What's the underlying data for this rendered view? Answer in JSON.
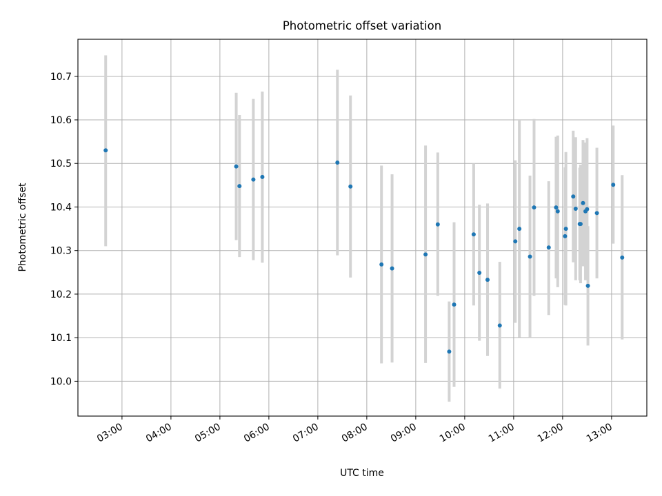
{
  "chart_data": {
    "type": "scatter",
    "title": "Photometric offset variation",
    "xlabel": "UTC time",
    "ylabel": "Photometric offset",
    "x_tick_labels": [
      "03:00",
      "04:00",
      "05:00",
      "06:00",
      "07:00",
      "08:00",
      "09:00",
      "10:00",
      "11:00",
      "12:00",
      "13:00"
    ],
    "y_tick_labels": [
      "10.0",
      "10.1",
      "10.2",
      "10.3",
      "10.4",
      "10.5",
      "10.6",
      "10.7"
    ],
    "xlim_hours": [
      2.1,
      13.72
    ],
    "ylim": [
      9.92,
      10.785
    ],
    "grid": true,
    "colors": {
      "point": "#1f77b4",
      "errorbar": "#d3d3d3"
    },
    "points": [
      {
        "x": "02:40",
        "y": 10.53,
        "ylo": 10.31,
        "yhi": 10.748
      },
      {
        "x": "05:20",
        "y": 10.493,
        "ylo": 10.324,
        "yhi": 10.662
      },
      {
        "x": "05:24",
        "y": 10.448,
        "ylo": 10.285,
        "yhi": 10.611
      },
      {
        "x": "05:41",
        "y": 10.463,
        "ylo": 10.278,
        "yhi": 10.648
      },
      {
        "x": "05:52",
        "y": 10.469,
        "ylo": 10.272,
        "yhi": 10.665
      },
      {
        "x": "07:24",
        "y": 10.502,
        "ylo": 10.289,
        "yhi": 10.715
      },
      {
        "x": "07:40",
        "y": 10.447,
        "ylo": 10.238,
        "yhi": 10.656
      },
      {
        "x": "08:18",
        "y": 10.268,
        "ylo": 10.041,
        "yhi": 10.495
      },
      {
        "x": "08:31",
        "y": 10.259,
        "ylo": 10.043,
        "yhi": 10.475
      },
      {
        "x": "09:12",
        "y": 10.291,
        "ylo": 10.042,
        "yhi": 10.541
      },
      {
        "x": "09:27",
        "y": 10.36,
        "ylo": 10.196,
        "yhi": 10.525
      },
      {
        "x": "09:41",
        "y": 10.068,
        "ylo": 9.953,
        "yhi": 10.183
      },
      {
        "x": "09:47",
        "y": 10.176,
        "ylo": 9.987,
        "yhi": 10.365
      },
      {
        "x": "10:11",
        "y": 10.337,
        "ylo": 10.174,
        "yhi": 10.5
      },
      {
        "x": "10:18",
        "y": 10.249,
        "ylo": 10.093,
        "yhi": 10.405
      },
      {
        "x": "10:28",
        "y": 10.233,
        "ylo": 10.058,
        "yhi": 10.408
      },
      {
        "x": "10:43",
        "y": 10.128,
        "ylo": 9.983,
        "yhi": 10.274
      },
      {
        "x": "11:02",
        "y": 10.321,
        "ylo": 10.134,
        "yhi": 10.507
      },
      {
        "x": "11:07",
        "y": 10.35,
        "ylo": 10.101,
        "yhi": 10.6
      },
      {
        "x": "11:20",
        "y": 10.286,
        "ylo": 10.1,
        "yhi": 10.472
      },
      {
        "x": "11:25",
        "y": 10.399,
        "ylo": 10.196,
        "yhi": 10.602
      },
      {
        "x": "11:43",
        "y": 10.307,
        "ylo": 10.152,
        "yhi": 10.459
      },
      {
        "x": "11:52",
        "y": 10.399,
        "ylo": 10.236,
        "yhi": 10.561
      },
      {
        "x": "11:54",
        "y": 10.39,
        "ylo": 10.216,
        "yhi": 10.564
      },
      {
        "x": "12:03",
        "y": 10.333,
        "ylo": 10.175,
        "yhi": 10.491
      },
      {
        "x": "12:04",
        "y": 10.35,
        "ylo": 10.174,
        "yhi": 10.526
      },
      {
        "x": "12:13",
        "y": 10.424,
        "ylo": 10.273,
        "yhi": 10.575
      },
      {
        "x": "12:16",
        "y": 10.396,
        "ylo": 10.232,
        "yhi": 10.56
      },
      {
        "x": "12:21",
        "y": 10.361,
        "ylo": 10.232,
        "yhi": 10.49
      },
      {
        "x": "12:22",
        "y": 10.361,
        "ylo": 10.225,
        "yhi": 10.497
      },
      {
        "x": "12:25",
        "y": 10.409,
        "ylo": 10.264,
        "yhi": 10.554
      },
      {
        "x": "12:28",
        "y": 10.39,
        "ylo": 10.232,
        "yhi": 10.548
      },
      {
        "x": "12:30",
        "y": 10.395,
        "ylo": 10.232,
        "yhi": 10.558
      },
      {
        "x": "12:31",
        "y": 10.219,
        "ylo": 10.082,
        "yhi": 10.356
      },
      {
        "x": "12:42",
        "y": 10.386,
        "ylo": 10.236,
        "yhi": 10.536
      },
      {
        "x": "13:02",
        "y": 10.451,
        "ylo": 10.316,
        "yhi": 10.587
      },
      {
        "x": "13:13",
        "y": 10.284,
        "ylo": 10.096,
        "yhi": 10.473
      }
    ]
  }
}
